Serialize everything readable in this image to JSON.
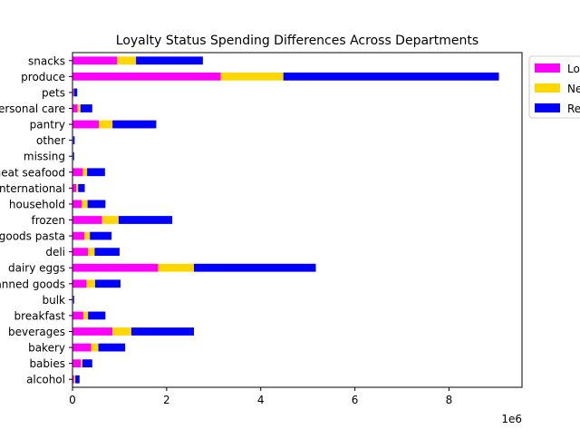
{
  "chart_data": {
    "type": "bar",
    "orientation": "horizontal",
    "stacked": true,
    "title": "Loyalty Status Spending Differences Across Departments",
    "xlabel": "",
    "ylabel": "",
    "x_multiplier_label": "1e6",
    "xlim": [
      0,
      9.55
    ],
    "xticks": [
      "0",
      "2",
      "4",
      "6",
      "8"
    ],
    "grid": false,
    "legend_position": "top-right (outside)",
    "categories": [
      "alcohol",
      "babies",
      "bakery",
      "beverages",
      "breakfast",
      "bulk",
      "canned goods",
      "dairy eggs",
      "deli",
      "dry goods pasta",
      "frozen",
      "household",
      "international",
      "meat seafood",
      "missing",
      "other",
      "pantry",
      "personal care",
      "pets",
      "produce",
      "snacks"
    ],
    "series": [
      {
        "name": "Loyal",
        "color": "#ff00ff",
        "values": [
          0.03,
          0.18,
          0.4,
          0.85,
          0.23,
          0.01,
          0.3,
          1.82,
          0.33,
          0.25,
          0.63,
          0.2,
          0.08,
          0.22,
          0.01,
          0.01,
          0.56,
          0.11,
          0.02,
          3.15,
          0.95
        ]
      },
      {
        "name": "New",
        "color": "#ffd700",
        "values": [
          0.03,
          0.03,
          0.15,
          0.4,
          0.1,
          0.005,
          0.18,
          0.76,
          0.14,
          0.12,
          0.35,
          0.12,
          0.04,
          0.09,
          0.005,
          0.005,
          0.29,
          0.06,
          0.01,
          1.33,
          0.4
        ]
      },
      {
        "name": "Regular",
        "color": "#0000ff",
        "values": [
          0.09,
          0.21,
          0.57,
          1.33,
          0.37,
          0.02,
          0.54,
          2.59,
          0.53,
          0.46,
          1.14,
          0.38,
          0.14,
          0.38,
          0.02,
          0.03,
          0.93,
          0.25,
          0.07,
          4.58,
          1.42
        ]
      }
    ]
  }
}
